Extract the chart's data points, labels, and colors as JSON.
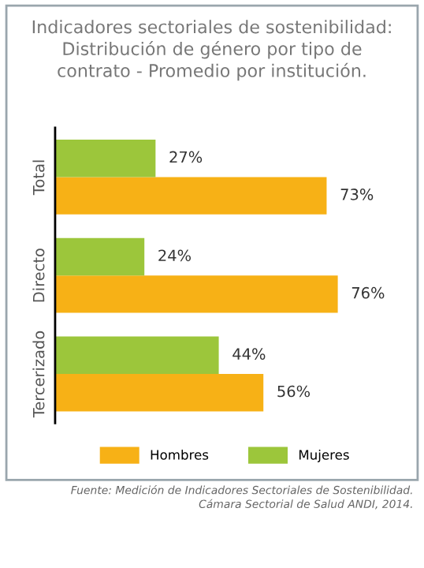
{
  "chart_data": {
    "type": "bar",
    "orientation": "horizontal",
    "title": "Indicadores sectoriales de sostenibilidad:\nDistribución de género por tipo de\ncontrato - Promedio por institución.",
    "categories": [
      "Total",
      "Directo",
      "Tercerizado"
    ],
    "series": [
      {
        "name": "Hombres",
        "color": "#f7b116",
        "values": [
          73,
          76,
          56
        ],
        "value_labels": [
          "73%",
          "76%",
          "56%"
        ]
      },
      {
        "name": "Mujeres",
        "color": "#9cc63b",
        "values": [
          27,
          24,
          44
        ],
        "value_labels": [
          "27%",
          "24%",
          "44%"
        ]
      }
    ],
    "legend": "bottom",
    "grid": false,
    "tick_labels": "y",
    "annotations": [
      "Fuente: Medición de Indicadores Sectoriales de Sostenibilidad.\nCámara Sectorial de Salud ANDI, 2014."
    ]
  }
}
